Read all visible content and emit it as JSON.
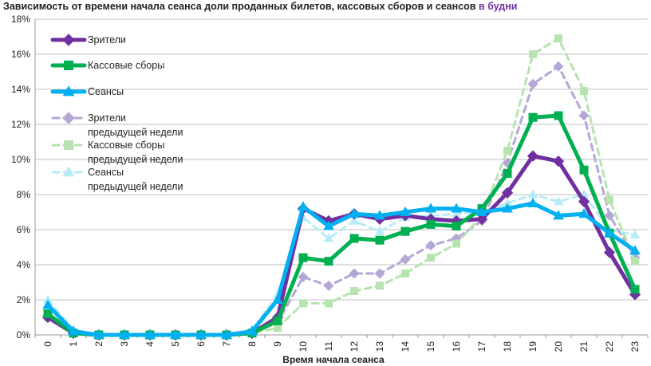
{
  "chart_data": {
    "type": "line",
    "title": "Зависимость от времени начала сеанса доли проданных билетов, кассовых сборов и сеансов",
    "title_highlight": "в будни",
    "xlabel": "Время начала сеанса",
    "ylabel": "",
    "ylim": [
      0,
      18
    ],
    "y_ticks": [
      "0%",
      "2%",
      "4%",
      "6%",
      "8%",
      "10%",
      "12%",
      "14%",
      "16%",
      "18%"
    ],
    "categories": [
      "0",
      "1",
      "2",
      "3",
      "4",
      "5",
      "6",
      "7",
      "8",
      "9",
      "10",
      "11",
      "12",
      "13",
      "14",
      "15",
      "16",
      "17",
      "18",
      "19",
      "20",
      "21",
      "22",
      "23"
    ],
    "grid": true,
    "legend_position": "top-left",
    "series": [
      {
        "name": "Зрители",
        "color": "#7030a0",
        "dash": false,
        "marker": "diamond",
        "values": [
          1.0,
          0.1,
          0.0,
          0.0,
          0.0,
          0.0,
          0.0,
          0.0,
          0.1,
          1.0,
          7.2,
          6.5,
          6.9,
          6.6,
          6.8,
          6.6,
          6.5,
          6.6,
          8.1,
          10.2,
          9.9,
          7.6,
          4.7,
          2.3
        ]
      },
      {
        "name": "Кассовые сборы",
        "color": "#00b050",
        "dash": false,
        "marker": "square",
        "values": [
          1.2,
          0.1,
          0.0,
          0.0,
          0.0,
          0.0,
          0.0,
          0.0,
          0.1,
          0.8,
          4.4,
          4.2,
          5.5,
          5.4,
          5.9,
          6.3,
          6.2,
          7.2,
          9.2,
          12.4,
          12.5,
          9.4,
          5.8,
          2.6
        ]
      },
      {
        "name": "Сеансы",
        "color": "#00b0f0",
        "dash": false,
        "marker": "triangle",
        "values": [
          1.7,
          0.2,
          0.0,
          0.0,
          0.0,
          0.0,
          0.0,
          0.0,
          0.2,
          2.0,
          7.3,
          6.2,
          6.9,
          6.8,
          7.0,
          7.2,
          7.2,
          7.0,
          7.2,
          7.5,
          6.8,
          6.9,
          5.8,
          4.8
        ]
      },
      {
        "name": "Зрители предыдущей недели",
        "color": "#b4a7d6",
        "dash": true,
        "marker": "diamond",
        "values": [
          1.1,
          0.1,
          0.0,
          0.0,
          0.0,
          0.0,
          0.0,
          0.0,
          0.1,
          0.7,
          3.3,
          2.8,
          3.5,
          3.5,
          4.3,
          5.1,
          5.5,
          6.5,
          9.8,
          14.3,
          15.3,
          12.5,
          6.8,
          4.4
        ]
      },
      {
        "name": "Кассовые сборы предыдущей недели",
        "color": "#b6e3b0",
        "dash": true,
        "marker": "square",
        "values": [
          1.0,
          0.1,
          0.0,
          0.0,
          0.0,
          0.0,
          0.0,
          0.0,
          0.1,
          0.4,
          1.8,
          1.8,
          2.5,
          2.8,
          3.5,
          4.4,
          5.2,
          6.8,
          10.5,
          16.0,
          16.9,
          13.9,
          7.7,
          4.2
        ]
      },
      {
        "name": "Сеансы предыдущей недели",
        "color": "#b7ecf7",
        "dash": true,
        "marker": "triangle",
        "values": [
          2.0,
          0.3,
          0.0,
          0.0,
          0.0,
          0.0,
          0.0,
          0.0,
          0.3,
          2.3,
          6.7,
          5.5,
          6.5,
          5.9,
          6.7,
          6.8,
          6.9,
          7.0,
          7.5,
          8.0,
          7.6,
          8.0,
          6.0,
          5.7
        ]
      }
    ],
    "legend": [
      {
        "lines": [
          "Зрители"
        ]
      },
      {
        "lines": [
          "Кассовые сборы"
        ]
      },
      {
        "lines": [
          "Сеансы"
        ]
      },
      {
        "lines": [
          "Зрители",
          "предыдущей недели"
        ]
      },
      {
        "lines": [
          "Кассовые сборы",
          "предыдущей недели"
        ]
      },
      {
        "lines": [
          "Сеансы",
          "предыдущей недели"
        ]
      }
    ]
  }
}
